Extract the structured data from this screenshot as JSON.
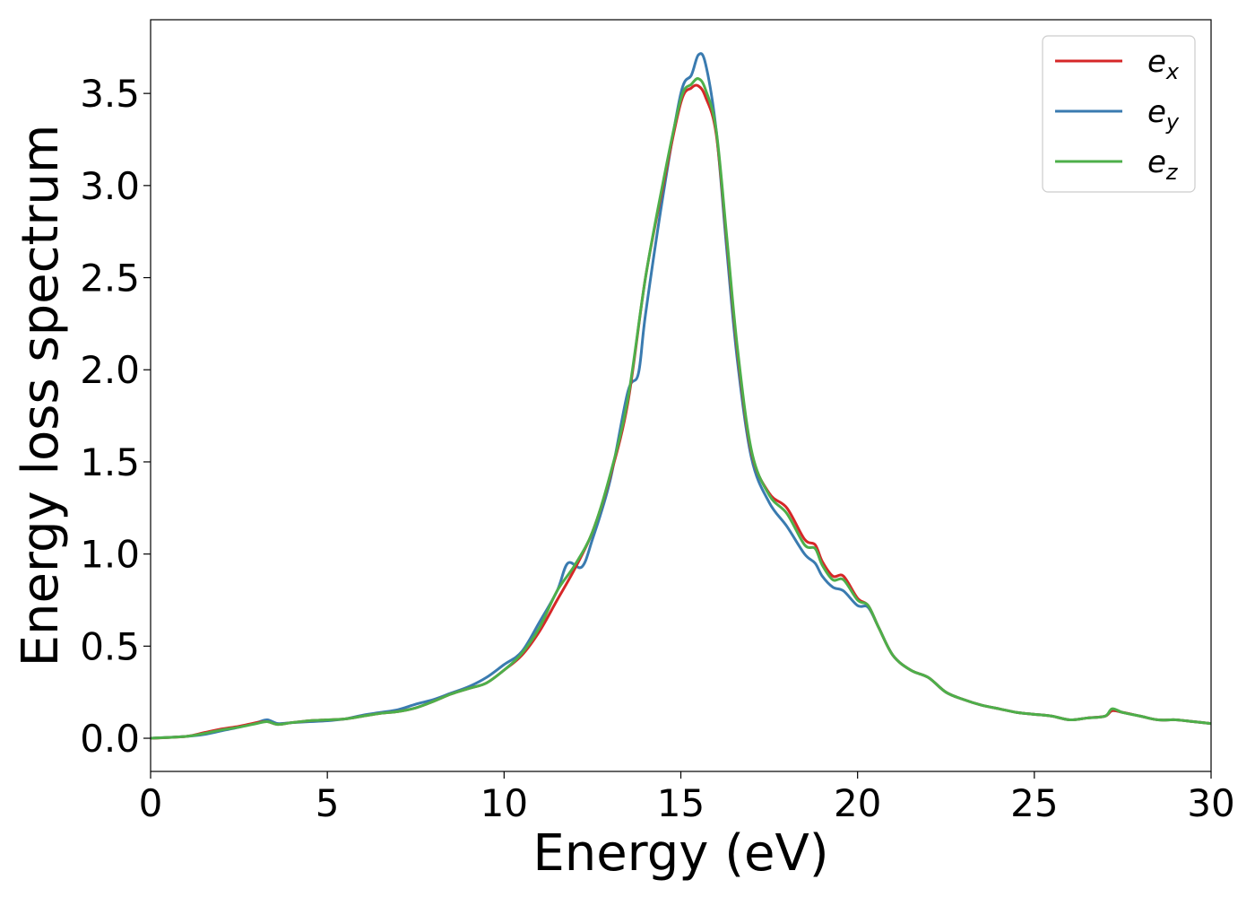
{
  "chart_data": {
    "type": "line",
    "title": "",
    "xlabel": "Energy (eV)",
    "ylabel": "Energy loss spectrum",
    "xlim": [
      0,
      30
    ],
    "ylim": [
      -0.18,
      3.9
    ],
    "xticks": [
      0,
      5,
      10,
      15,
      20,
      25,
      30
    ],
    "xtick_labels": [
      "0",
      "5",
      "10",
      "15",
      "20",
      "25",
      "30"
    ],
    "yticks": [
      0.0,
      0.5,
      1.0,
      1.5,
      2.0,
      2.5,
      3.0,
      3.5
    ],
    "ytick_labels": [
      "0.0",
      "0.5",
      "1.0",
      "1.5",
      "2.0",
      "2.5",
      "3.0",
      "3.5"
    ],
    "grid": false,
    "legend_position": "top-right",
    "series": [
      {
        "name": "e",
        "subscript": "x",
        "color": "#d62728",
        "x": [
          0,
          1,
          1.5,
          2,
          2.5,
          3,
          3.3,
          3.6,
          4,
          4.5,
          5,
          5.5,
          6,
          6.5,
          7,
          7.5,
          8,
          8.5,
          9,
          9.5,
          10,
          10.5,
          11,
          11.5,
          12,
          12.5,
          13,
          13.5,
          14,
          14.5,
          15,
          15.3,
          15.5,
          15.7,
          16,
          16.3,
          16.6,
          17,
          17.5,
          18,
          18.5,
          18.8,
          19,
          19.3,
          19.6,
          20,
          20.3,
          20.6,
          21,
          21.5,
          22,
          22.5,
          23,
          23.5,
          24,
          24.5,
          25,
          25.5,
          26,
          26.5,
          27,
          27.2,
          27.5,
          28,
          28.5,
          29,
          29.5,
          30
        ],
        "y": [
          0.0,
          0.01,
          0.03,
          0.05,
          0.065,
          0.085,
          0.09,
          0.075,
          0.085,
          0.095,
          0.1,
          0.105,
          0.12,
          0.135,
          0.145,
          0.165,
          0.2,
          0.24,
          0.27,
          0.3,
          0.37,
          0.45,
          0.58,
          0.75,
          0.92,
          1.12,
          1.42,
          1.82,
          2.5,
          3.0,
          3.45,
          3.53,
          3.54,
          3.48,
          3.28,
          2.7,
          2.1,
          1.55,
          1.33,
          1.25,
          1.08,
          1.05,
          0.96,
          0.88,
          0.88,
          0.76,
          0.72,
          0.6,
          0.45,
          0.37,
          0.33,
          0.25,
          0.21,
          0.18,
          0.16,
          0.14,
          0.13,
          0.12,
          0.1,
          0.11,
          0.12,
          0.15,
          0.14,
          0.12,
          0.1,
          0.1,
          0.09,
          0.08
        ]
      },
      {
        "name": "e",
        "subscript": "y",
        "color": "#3a7bb0",
        "x": [
          0,
          1,
          1.5,
          2,
          2.5,
          3,
          3.3,
          3.6,
          4,
          4.5,
          5,
          5.5,
          6,
          6.5,
          7,
          7.5,
          8,
          8.5,
          9,
          9.5,
          10,
          10.5,
          11,
          11.5,
          11.8,
          12.2,
          12.5,
          13,
          13.5,
          13.8,
          14,
          14.5,
          15,
          15.3,
          15.5,
          15.7,
          16,
          16.3,
          16.6,
          17,
          17.5,
          18,
          18.5,
          18.8,
          19,
          19.3,
          19.6,
          20,
          20.3,
          20.6,
          21,
          21.5,
          22,
          22.5,
          23,
          23.5,
          24,
          24.5,
          25,
          25.5,
          26,
          26.5,
          27,
          27.2,
          27.5,
          28,
          28.5,
          29,
          29.5,
          30
        ],
        "y": [
          0.0,
          0.01,
          0.02,
          0.04,
          0.06,
          0.085,
          0.1,
          0.08,
          0.085,
          0.09,
          0.095,
          0.105,
          0.125,
          0.14,
          0.155,
          0.185,
          0.21,
          0.245,
          0.28,
          0.33,
          0.4,
          0.47,
          0.63,
          0.8,
          0.95,
          0.93,
          1.08,
          1.4,
          1.88,
          1.98,
          2.3,
          2.95,
          3.5,
          3.6,
          3.71,
          3.66,
          3.3,
          2.65,
          2.05,
          1.52,
          1.28,
          1.15,
          1.0,
          0.95,
          0.88,
          0.82,
          0.8,
          0.72,
          0.71,
          0.6,
          0.45,
          0.37,
          0.33,
          0.25,
          0.21,
          0.18,
          0.16,
          0.14,
          0.13,
          0.12,
          0.1,
          0.11,
          0.12,
          0.15,
          0.14,
          0.12,
          0.1,
          0.1,
          0.09,
          0.08
        ]
      },
      {
        "name": "e",
        "subscript": "z",
        "color": "#4daf4a",
        "x": [
          0,
          1,
          1.5,
          2,
          2.5,
          3,
          3.3,
          3.6,
          4,
          4.5,
          5,
          5.5,
          6,
          6.5,
          7,
          7.5,
          8,
          8.5,
          9,
          9.5,
          10,
          10.5,
          11,
          11.5,
          12,
          12.5,
          13,
          13.5,
          14,
          14.5,
          15,
          15.3,
          15.5,
          15.7,
          16,
          16.3,
          16.6,
          17,
          17.5,
          18,
          18.5,
          18.8,
          19,
          19.3,
          19.6,
          20,
          20.3,
          20.6,
          21,
          21.5,
          22,
          22.5,
          23,
          23.5,
          24,
          24.5,
          25,
          25.5,
          26,
          26.5,
          27,
          27.2,
          27.5,
          28,
          28.5,
          29,
          29.5,
          30
        ],
        "y": [
          0.0,
          0.01,
          0.025,
          0.045,
          0.06,
          0.08,
          0.09,
          0.075,
          0.085,
          0.095,
          0.1,
          0.105,
          0.12,
          0.135,
          0.145,
          0.165,
          0.2,
          0.24,
          0.27,
          0.3,
          0.37,
          0.46,
          0.6,
          0.8,
          0.94,
          1.12,
          1.43,
          1.84,
          2.5,
          3.02,
          3.47,
          3.55,
          3.58,
          3.52,
          3.3,
          2.72,
          2.12,
          1.56,
          1.32,
          1.22,
          1.05,
          1.03,
          0.94,
          0.86,
          0.86,
          0.75,
          0.72,
          0.6,
          0.45,
          0.37,
          0.33,
          0.25,
          0.21,
          0.18,
          0.16,
          0.14,
          0.13,
          0.12,
          0.1,
          0.11,
          0.12,
          0.16,
          0.14,
          0.12,
          0.1,
          0.1,
          0.09,
          0.08
        ]
      }
    ]
  }
}
